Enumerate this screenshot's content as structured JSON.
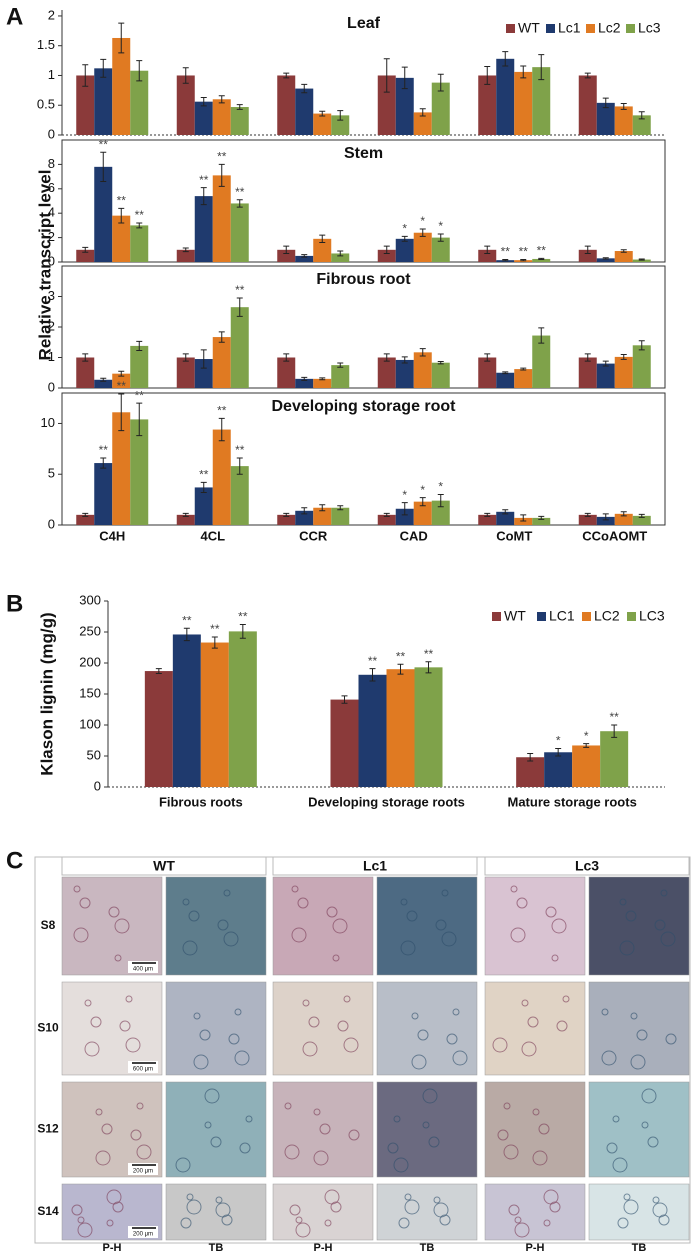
{
  "panel_labels": [
    "A",
    "B",
    "C"
  ],
  "chart_data": [
    {
      "type": "bar",
      "ylabel": "Relative transcript level",
      "categories": [
        "C4H",
        "4CL",
        "CCR",
        "CAD",
        "CoMT",
        "CCoAOMT"
      ],
      "series": [
        {
          "name": "WT",
          "color": "#8b3a3a"
        },
        {
          "name": "Lc1",
          "color": "#1f3a6e"
        },
        {
          "name": "Lc2",
          "color": "#e07a22"
        },
        {
          "name": "Lc3",
          "color": "#7fa24a"
        }
      ],
      "panels": [
        {
          "title": "Leaf",
          "ylim": [
            0,
            2.1
          ],
          "yticks": [
            0,
            0.5,
            1,
            1.5,
            2
          ],
          "values": [
            [
              1,
              1,
              1,
              1,
              1,
              1
            ],
            [
              1.12,
              0.56,
              0.78,
              0.96,
              1.28,
              0.54
            ],
            [
              1.63,
              0.6,
              0.36,
              0.38,
              1.06,
              0.48
            ],
            [
              1.08,
              0.47,
              0.33,
              0.88,
              1.14,
              0.33
            ]
          ],
          "errors": [
            [
              0.18,
              0.13,
              0.04,
              0.28,
              0.15,
              0.04
            ],
            [
              0.15,
              0.07,
              0.07,
              0.18,
              0.12,
              0.08
            ],
            [
              0.25,
              0.06,
              0.04,
              0.06,
              0.1,
              0.05
            ],
            [
              0.17,
              0.04,
              0.08,
              0.14,
              0.21,
              0.06
            ]
          ],
          "significance": [
            [
              null,
              null,
              null,
              null,
              null,
              null
            ],
            [
              null,
              null,
              null,
              null,
              null,
              null
            ],
            [
              null,
              null,
              null,
              null,
              null,
              null
            ],
            [
              null,
              null,
              null,
              null,
              null,
              null
            ]
          ]
        },
        {
          "title": "Stem",
          "ylim": [
            0,
            10
          ],
          "yticks": [
            0,
            2,
            4,
            6,
            8
          ],
          "values": [
            [
              1,
              1,
              1,
              1,
              1,
              1
            ],
            [
              7.8,
              5.4,
              0.5,
              1.9,
              0.15,
              0.3
            ],
            [
              3.8,
              7.1,
              1.9,
              2.4,
              0.15,
              0.9
            ],
            [
              3.0,
              4.8,
              0.7,
              2.0,
              0.25,
              0.2
            ]
          ],
          "errors": [
            [
              0.2,
              0.15,
              0.3,
              0.3,
              0.3,
              0.3
            ],
            [
              1.2,
              0.7,
              0.1,
              0.2,
              0.05,
              0.05
            ],
            [
              0.6,
              0.9,
              0.3,
              0.3,
              0.05,
              0.1
            ],
            [
              0.2,
              0.3,
              0.2,
              0.3,
              0.05,
              0.05
            ]
          ],
          "significance": [
            [
              null,
              null,
              null,
              null,
              null,
              null
            ],
            [
              "**",
              "**",
              null,
              "*",
              "**",
              null
            ],
            [
              "**",
              "**",
              null,
              "*",
              "**",
              null
            ],
            [
              "**",
              "**",
              null,
              "*",
              "**",
              null
            ]
          ]
        },
        {
          "title": "Fibrous root",
          "ylim": [
            0,
            4
          ],
          "yticks": [
            0,
            1,
            2,
            3
          ],
          "values": [
            [
              1,
              1,
              1,
              1,
              1,
              1
            ],
            [
              0.27,
              0.95,
              0.3,
              0.92,
              0.5,
              0.8
            ],
            [
              0.47,
              1.67,
              0.3,
              1.17,
              0.62,
              1.02
            ],
            [
              1.38,
              2.65,
              0.75,
              0.83,
              1.72,
              1.4
            ]
          ],
          "errors": [
            [
              0.12,
              0.12,
              0.12,
              0.12,
              0.12,
              0.12
            ],
            [
              0.05,
              0.3,
              0.05,
              0.1,
              0.03,
              0.08
            ],
            [
              0.08,
              0.17,
              0.03,
              0.12,
              0.03,
              0.08
            ],
            [
              0.15,
              0.3,
              0.07,
              0.04,
              0.25,
              0.15
            ]
          ],
          "significance": [
            [
              null,
              null,
              null,
              null,
              null,
              null
            ],
            [
              null,
              null,
              null,
              null,
              null,
              null
            ],
            [
              null,
              null,
              null,
              null,
              null,
              null
            ],
            [
              null,
              "**",
              null,
              null,
              null,
              null
            ]
          ]
        },
        {
          "title": "Developing storage root",
          "ylim": [
            0,
            13
          ],
          "yticks": [
            0,
            5,
            10
          ],
          "values": [
            [
              1,
              1,
              1,
              1,
              1,
              1
            ],
            [
              6.1,
              3.7,
              1.4,
              1.6,
              1.3,
              0.8
            ],
            [
              11.1,
              9.4,
              1.7,
              2.3,
              0.7,
              1.1
            ],
            [
              10.4,
              5.8,
              1.7,
              2.4,
              0.7,
              0.9
            ]
          ],
          "errors": [
            [
              0.15,
              0.15,
              0.15,
              0.15,
              0.15,
              0.15
            ],
            [
              0.5,
              0.5,
              0.3,
              0.6,
              0.2,
              0.3
            ],
            [
              1.8,
              1.1,
              0.3,
              0.4,
              0.3,
              0.2
            ],
            [
              1.6,
              0.8,
              0.2,
              0.6,
              0.15,
              0.15
            ]
          ],
          "significance": [
            [
              null,
              null,
              null,
              null,
              null,
              null
            ],
            [
              "**",
              "**",
              null,
              "*",
              null,
              null
            ],
            [
              "**",
              "**",
              null,
              "*",
              null,
              null
            ],
            [
              "**",
              "**",
              null,
              "*",
              null,
              null
            ]
          ]
        }
      ]
    },
    {
      "type": "bar",
      "ylabel": "Klason lignin (mg/g)",
      "categories": [
        "Fibrous roots",
        "Developing storage roots",
        "Mature storage roots"
      ],
      "ylim": [
        0,
        300
      ],
      "yticks": [
        0,
        50,
        100,
        150,
        200,
        250,
        300
      ],
      "series": [
        {
          "name": "WT",
          "color": "#8b3a3a",
          "values": [
            187,
            141,
            48
          ],
          "errors": [
            4,
            6,
            6
          ],
          "significance": [
            null,
            null,
            null
          ]
        },
        {
          "name": "LC1",
          "color": "#1f3a6e",
          "values": [
            246,
            181,
            56
          ],
          "errors": [
            10,
            10,
            6
          ],
          "significance": [
            "**",
            "**",
            "*"
          ]
        },
        {
          "name": "LC2",
          "color": "#e07a22",
          "values": [
            233,
            190,
            67
          ],
          "errors": [
            9,
            8,
            3
          ],
          "significance": [
            "**",
            "**",
            "*"
          ]
        },
        {
          "name": "LC3",
          "color": "#7fa24a",
          "values": [
            251,
            193,
            90
          ],
          "errors": [
            11,
            9,
            10
          ],
          "significance": [
            "**",
            "**",
            "**"
          ]
        }
      ]
    }
  ],
  "micrographs": {
    "columns": [
      "WT",
      "Lc1",
      "Lc3"
    ],
    "rows": [
      "S8",
      "S10",
      "S12",
      "S14"
    ],
    "stains": [
      "P-H",
      "TB",
      "P-H",
      "TB",
      "P-H",
      "TB"
    ],
    "scale_bars": [
      "400 μm",
      "600 μm",
      "200 μm",
      "200 μm"
    ]
  }
}
